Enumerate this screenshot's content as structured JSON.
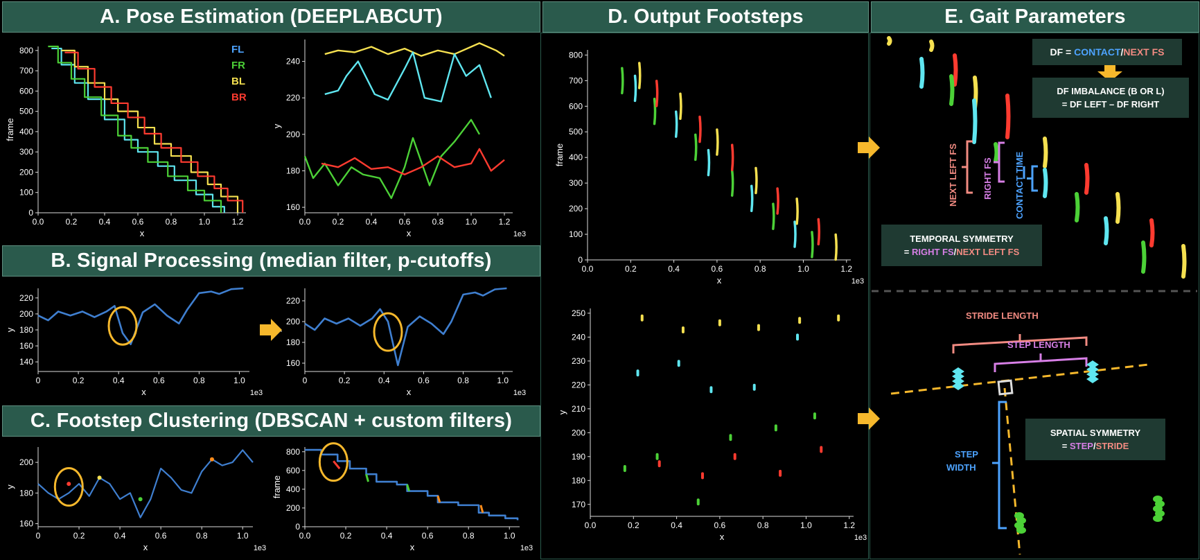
{
  "headers": {
    "a": "A. Pose Estimation (DEEPLABCUT)",
    "b": "B. Signal Processing (median filter, p-cutoffs)",
    "c": "C. Footstep Clustering (DBSCAN + custom filters)",
    "d": "D. Output Footsteps",
    "e": "E. Gait Parameters"
  },
  "legend": [
    {
      "label": "FL",
      "color": "#4da3ff"
    },
    {
      "label": "FR",
      "color": "#4cd137"
    },
    {
      "label": "BL",
      "color": "#f5e050"
    },
    {
      "label": "BR",
      "color": "#ff3b30"
    }
  ],
  "colors": {
    "fl": "#4da3ff",
    "fr": "#4cd137",
    "bl": "#f5e050",
    "br": "#ff3b30",
    "cyan": "#5fe6f0",
    "signal": "#3f7fd0",
    "arrow": "#f6b82c",
    "circle": "#f6b82c",
    "header": "#2a5a4c"
  },
  "chart_data": [
    {
      "id": "a1",
      "type": "line",
      "xlabel": "x",
      "ylabel": "frame",
      "xlim": [
        0,
        1.25
      ],
      "ylim": [
        0,
        820
      ],
      "xticks": [
        "0.0",
        "0.2",
        "0.4",
        "0.6",
        "0.8",
        "1.0",
        "1.2"
      ],
      "yticks": [
        "0",
        "100",
        "200",
        "300",
        "400",
        "500",
        "600",
        "700",
        "800"
      ],
      "series": [
        {
          "name": "FL",
          "x": [
            0.08,
            0.14,
            0.22,
            0.3,
            0.4,
            0.52,
            0.6,
            0.72,
            0.82,
            0.95,
            1.05,
            1.12
          ],
          "y": [
            810,
            730,
            640,
            560,
            460,
            360,
            300,
            230,
            160,
            90,
            30,
            0
          ]
        },
        {
          "name": "FR",
          "x": [
            0.06,
            0.12,
            0.2,
            0.28,
            0.38,
            0.48,
            0.56,
            0.66,
            0.78,
            0.9,
            1.0,
            1.1
          ],
          "y": [
            820,
            740,
            660,
            570,
            480,
            380,
            320,
            250,
            180,
            110,
            60,
            0
          ]
        },
        {
          "name": "BL",
          "x": [
            0.14,
            0.22,
            0.3,
            0.4,
            0.48,
            0.6,
            0.7,
            0.8,
            0.92,
            1.02,
            1.1,
            1.2
          ],
          "y": [
            800,
            720,
            640,
            560,
            500,
            420,
            340,
            280,
            200,
            140,
            80,
            0
          ]
        },
        {
          "name": "BR",
          "x": [
            0.16,
            0.24,
            0.34,
            0.44,
            0.54,
            0.64,
            0.74,
            0.86,
            0.96,
            1.06,
            1.14,
            1.23
          ],
          "y": [
            790,
            710,
            620,
            540,
            470,
            390,
            320,
            250,
            180,
            120,
            60,
            0
          ]
        }
      ]
    },
    {
      "id": "a2",
      "type": "line",
      "xlabel": "x",
      "ylabel": "y",
      "xlim": [
        0,
        1.25
      ],
      "ylim": [
        157,
        252
      ],
      "unit": "1e3",
      "xticks": [
        "0.0",
        "0.2",
        "0.4",
        "0.6",
        "0.8",
        "1.0",
        "1.2"
      ],
      "yticks": [
        "160",
        "180",
        "200",
        "220",
        "240"
      ],
      "series": [
        {
          "name": "BL",
          "x": [
            0.12,
            0.2,
            0.3,
            0.4,
            0.5,
            0.6,
            0.7,
            0.8,
            0.9,
            1.0,
            1.05,
            1.15,
            1.2
          ],
          "y": [
            244,
            246,
            245,
            248,
            244,
            247,
            243,
            246,
            244,
            248,
            250,
            246,
            243
          ]
        },
        {
          "name": "FL",
          "x": [
            0.12,
            0.2,
            0.25,
            0.32,
            0.42,
            0.5,
            0.6,
            0.65,
            0.72,
            0.82,
            0.9,
            0.97,
            1.05,
            1.12
          ],
          "y": [
            222,
            224,
            232,
            240,
            222,
            219,
            236,
            245,
            220,
            218,
            244,
            232,
            238,
            220
          ]
        },
        {
          "name": "FR",
          "x": [
            0.0,
            0.05,
            0.12,
            0.2,
            0.28,
            0.35,
            0.45,
            0.52,
            0.6,
            0.65,
            0.75,
            0.82,
            0.9,
            1.0,
            1.05
          ],
          "y": [
            188,
            176,
            184,
            172,
            182,
            178,
            176,
            165,
            182,
            198,
            172,
            188,
            196,
            208,
            200
          ]
        },
        {
          "name": "BR",
          "x": [
            0.1,
            0.2,
            0.3,
            0.4,
            0.5,
            0.6,
            0.7,
            0.8,
            0.9,
            1.0,
            1.05,
            1.12,
            1.2
          ],
          "y": [
            184,
            182,
            187,
            181,
            182,
            178,
            182,
            188,
            182,
            184,
            192,
            180,
            186
          ]
        }
      ]
    },
    {
      "id": "b1",
      "type": "scatter",
      "xlabel": "x",
      "ylabel": "y",
      "xlim": [
        0,
        1.05
      ],
      "ylim": [
        128,
        232
      ],
      "unit": "1e3",
      "xticks": [
        "0",
        "0.2",
        "0.4",
        "0.6",
        "0.8",
        "1.0"
      ],
      "yticks": [
        "140",
        "160",
        "180",
        "200",
        "220"
      ],
      "series": [
        {
          "name": "",
          "x": [
            0.0,
            0.05,
            0.1,
            0.16,
            0.22,
            0.28,
            0.34,
            0.38,
            0.42,
            0.46,
            0.52,
            0.58,
            0.64,
            0.7,
            0.74,
            0.8,
            0.86,
            0.9,
            0.96,
            1.02
          ],
          "y": [
            198,
            192,
            203,
            198,
            203,
            196,
            203,
            210,
            176,
            162,
            202,
            212,
            198,
            188,
            205,
            226,
            228,
            225,
            231,
            232
          ]
        }
      ]
    },
    {
      "id": "b2",
      "type": "scatter",
      "xlabel": "x",
      "ylabel": "y",
      "xlim": [
        0,
        1.05
      ],
      "ylim": [
        152,
        232
      ],
      "unit": "1e3",
      "xticks": [
        "0",
        "0.2",
        "0.4",
        "0.6",
        "0.8",
        "1.0"
      ],
      "yticks": [
        "160",
        "180",
        "200",
        "220"
      ],
      "series": [
        {
          "name": "",
          "x": [
            0.0,
            0.05,
            0.1,
            0.16,
            0.22,
            0.28,
            0.34,
            0.38,
            0.42,
            0.47,
            0.52,
            0.58,
            0.64,
            0.7,
            0.74,
            0.8,
            0.86,
            0.9,
            0.96,
            1.02
          ],
          "y": [
            198,
            192,
            203,
            198,
            203,
            196,
            203,
            212,
            200,
            158,
            195,
            205,
            198,
            188,
            200,
            226,
            228,
            225,
            231,
            232
          ]
        }
      ]
    },
    {
      "id": "c1",
      "type": "scatter",
      "xlabel": "x",
      "ylabel": "y",
      "xlim": [
        0,
        1.05
      ],
      "ylim": [
        158,
        210
      ],
      "unit": "1e3",
      "xticks": [
        "0",
        "0.2",
        "0.4",
        "0.6",
        "0.8",
        "1.0"
      ],
      "yticks": [
        "160",
        "180",
        "200"
      ],
      "series": [
        {
          "name": "",
          "x": [
            0.0,
            0.05,
            0.1,
            0.15,
            0.2,
            0.25,
            0.3,
            0.35,
            0.4,
            0.45,
            0.5,
            0.55,
            0.6,
            0.65,
            0.7,
            0.75,
            0.8,
            0.85,
            0.9,
            0.95,
            1.0,
            1.05
          ],
          "y": [
            186,
            180,
            176,
            180,
            186,
            178,
            190,
            186,
            176,
            180,
            164,
            176,
            196,
            190,
            182,
            180,
            194,
            202,
            198,
            200,
            208,
            200
          ]
        }
      ]
    },
    {
      "id": "c2",
      "type": "line",
      "xlabel": "x",
      "ylabel": "frame",
      "xlim": [
        0,
        1.05
      ],
      "ylim": [
        0,
        850
      ],
      "unit": "1e3",
      "xticks": [
        "0.0",
        "0.2",
        "0.4",
        "0.6",
        "0.8",
        "1.0"
      ],
      "yticks": [
        "0",
        "200",
        "400",
        "600",
        "800"
      ],
      "series": [
        {
          "name": "",
          "x": [
            0.0,
            0.08,
            0.16,
            0.22,
            0.3,
            0.35,
            0.45,
            0.5,
            0.6,
            0.65,
            0.75,
            0.85,
            0.9,
            0.98,
            1.04
          ],
          "y": [
            820,
            770,
            700,
            620,
            560,
            480,
            450,
            380,
            330,
            260,
            230,
            150,
            120,
            90,
            70
          ]
        }
      ]
    },
    {
      "id": "d1",
      "type": "scatter",
      "xlabel": "x",
      "ylabel": "frame",
      "xlim": [
        0,
        1.22
      ],
      "ylim": [
        0,
        820
      ],
      "unit": "1e3",
      "xticks": [
        "0.0",
        "0.2",
        "0.4",
        "0.6",
        "0.8",
        "1.0",
        "1.2"
      ],
      "yticks": [
        "0",
        "100",
        "200",
        "300",
        "400",
        "500",
        "600",
        "700",
        "800"
      ],
      "series": [
        {
          "name": "FL",
          "x": [
            0.22,
            0.41,
            0.56,
            0.76,
            0.96
          ],
          "y": [
            670,
            530,
            380,
            240,
            100
          ]
        },
        {
          "name": "FR",
          "x": [
            0.16,
            0.31,
            0.5,
            0.67,
            0.86,
            1.04
          ],
          "y": [
            700,
            580,
            440,
            300,
            170,
            60
          ]
        },
        {
          "name": "BL",
          "x": [
            0.24,
            0.43,
            0.6,
            0.78,
            0.97,
            1.15
          ],
          "y": [
            720,
            600,
            460,
            310,
            190,
            50
          ]
        },
        {
          "name": "BR",
          "x": [
            0.32,
            0.52,
            0.67,
            0.88,
            1.07
          ],
          "y": [
            650,
            510,
            400,
            230,
            110
          ]
        }
      ]
    },
    {
      "id": "d2",
      "type": "scatter",
      "xlabel": "x",
      "ylabel": "y",
      "xlim": [
        0,
        1.22
      ],
      "ylim": [
        165,
        252
      ],
      "unit": "1e3",
      "xticks": [
        "0.0",
        "0.2",
        "0.4",
        "0.6",
        "0.8",
        "1.0",
        "1.2"
      ],
      "yticks": [
        "170",
        "180",
        "190",
        "200",
        "210",
        "220",
        "230",
        "240",
        "250"
      ],
      "series": [
        {
          "name": "FL",
          "x": [
            0.22,
            0.41,
            0.56,
            0.76,
            0.96
          ],
          "y": [
            225,
            229,
            218,
            219,
            240
          ]
        },
        {
          "name": "FR",
          "x": [
            0.16,
            0.31,
            0.5,
            0.65,
            0.86,
            1.04
          ],
          "y": [
            185,
            190,
            171,
            198,
            202,
            207
          ]
        },
        {
          "name": "BL",
          "x": [
            0.24,
            0.43,
            0.6,
            0.78,
            0.97,
            1.15
          ],
          "y": [
            248,
            243,
            246,
            244,
            247,
            248
          ]
        },
        {
          "name": "BR",
          "x": [
            0.32,
            0.52,
            0.67,
            0.88,
            1.07
          ],
          "y": [
            187,
            182,
            190,
            183,
            193
          ]
        }
      ]
    }
  ],
  "gait": {
    "df_formula": {
      "lhs": "DF = ",
      "contact": "CONTACT",
      "slash": "/",
      "next": "NEXT FS"
    },
    "df_imbalance": {
      "line1": "DF IMBALANCE (B OR L)",
      "line2": "= DF LEFT – DF RIGHT"
    },
    "temporal": {
      "line1": "TEMPORAL SYMMETRY",
      "prefix": "= ",
      "right": "RIGHT FS",
      "slash": "/",
      "next": "NEXT LEFT FS"
    },
    "spatial": {
      "line1": "SPATIAL SYMMETRY",
      "prefix": "= ",
      "step": "STEP",
      "slash": "/",
      "stride": "STRIDE"
    },
    "labels": {
      "next_left_fs": "NEXT LEFT FS",
      "right_fs": "RIGHT FS",
      "contact_time": "CONTACT TIME",
      "stride_length": "STRIDE LENGTH",
      "step_length": "STEP LENGTH",
      "step": "STEP",
      "width": "WIDTH"
    }
  }
}
